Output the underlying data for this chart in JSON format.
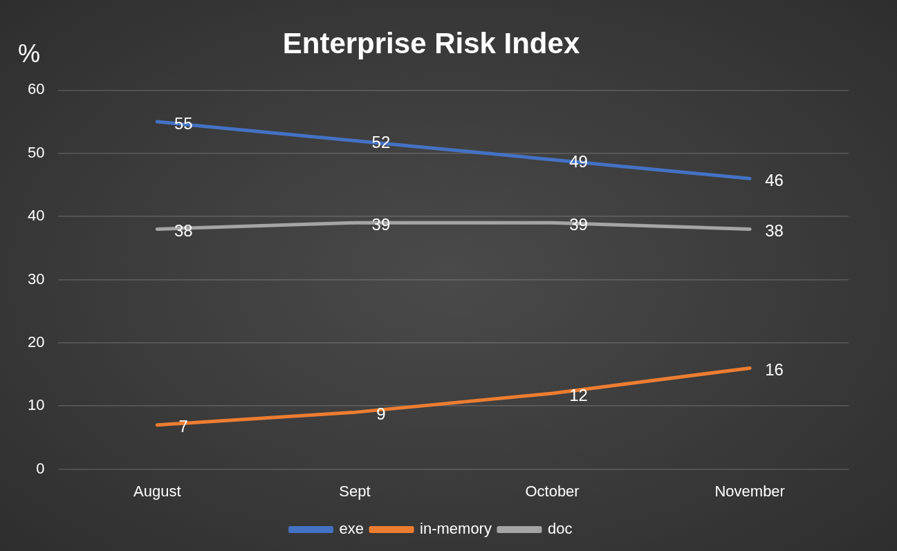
{
  "chart_data": {
    "type": "line",
    "title": "Enterprise Risk Index",
    "ylabel": "%",
    "categories": [
      "August",
      "Sept",
      "October",
      "November"
    ],
    "series": [
      {
        "name": "exe",
        "color": "#4472c4",
        "values": [
          55,
          52,
          49,
          46
        ]
      },
      {
        "name": "in-memory",
        "color": "#ed7d31",
        "values": [
          7,
          9,
          12,
          16
        ]
      },
      {
        "name": "doc",
        "color": "#a5a5a5",
        "values": [
          38,
          39,
          39,
          38
        ]
      }
    ],
    "ylim": [
      0,
      60
    ],
    "yticks": [
      0,
      10,
      20,
      30,
      40,
      50,
      60
    ],
    "grid": "y",
    "legend": "bottom",
    "data_labels": true,
    "marker": "none",
    "line_style": "solid"
  }
}
